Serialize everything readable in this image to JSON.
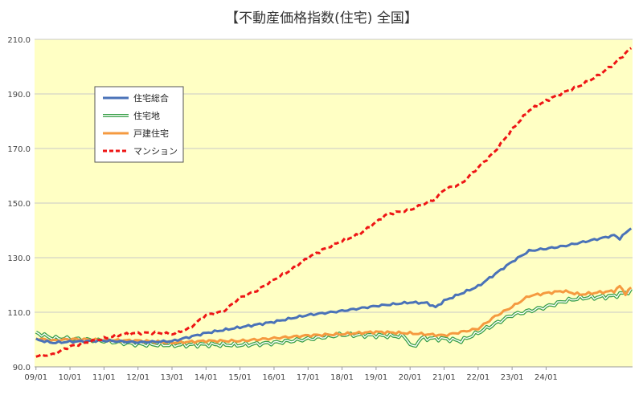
{
  "chart_data": {
    "type": "line",
    "title": "【不動産価格指数(住宅) 全国】",
    "xlabel": "",
    "ylabel": "",
    "ylim": [
      90,
      210
    ],
    "yticks": [
      "90.0",
      "110.0",
      "130.0",
      "150.0",
      "170.0",
      "190.0",
      "210.0"
    ],
    "xticks": [
      "09/01",
      "10/01",
      "11/01",
      "12/01",
      "13/01",
      "14/01",
      "15/01",
      "16/01",
      "17/01",
      "18/01",
      "19/01",
      "20/01",
      "21/01",
      "22/01",
      "23/01",
      "24/01"
    ],
    "x_start": "2009-01",
    "frequency": "monthly",
    "grid": "horizontal",
    "legend_position": "upper-left",
    "plot_background": "#ffffc4",
    "series": [
      {
        "name": "住宅総合",
        "color": "#4a72b8",
        "style": "solid",
        "anchors": [
          [
            0,
            100.0
          ],
          [
            6,
            98.8
          ],
          [
            12,
            99.2
          ],
          [
            24,
            99.6
          ],
          [
            36,
            99.0
          ],
          [
            48,
            99.4
          ],
          [
            60,
            102.4
          ],
          [
            72,
            104.5
          ],
          [
            84,
            106.5
          ],
          [
            96,
            109.0
          ],
          [
            108,
            110.5
          ],
          [
            120,
            112.3
          ],
          [
            132,
            113.6
          ],
          [
            138,
            113.4
          ],
          [
            141,
            111.8
          ],
          [
            144,
            114.2
          ],
          [
            156,
            119.5
          ],
          [
            168,
            128.5
          ],
          [
            174,
            132.5
          ],
          [
            180,
            133.3
          ],
          [
            186,
            134.2
          ],
          [
            192,
            135.5
          ],
          [
            198,
            136.8
          ],
          [
            204,
            138.2
          ],
          [
            206,
            137.0
          ],
          [
            210,
            141.0
          ]
        ]
      },
      {
        "name": "住宅地",
        "color": "#3aa04a",
        "style": "double",
        "anchors": [
          [
            0,
            102.5
          ],
          [
            6,
            100.5
          ],
          [
            12,
            100.3
          ],
          [
            24,
            99.5
          ],
          [
            36,
            98.3
          ],
          [
            48,
            98.0
          ],
          [
            60,
            98.2
          ],
          [
            72,
            98.0
          ],
          [
            84,
            98.8
          ],
          [
            96,
            100.2
          ],
          [
            108,
            101.8
          ],
          [
            120,
            101.5
          ],
          [
            130,
            101.2
          ],
          [
            133,
            97.0
          ],
          [
            136,
            100.5
          ],
          [
            144,
            100.3
          ],
          [
            150,
            99.5
          ],
          [
            156,
            102.5
          ],
          [
            168,
            109.0
          ],
          [
            180,
            112.0
          ],
          [
            186,
            114.0
          ],
          [
            192,
            115.2
          ],
          [
            198,
            115.5
          ],
          [
            204,
            116.0
          ],
          [
            210,
            117.8
          ]
        ]
      },
      {
        "name": "戸建住宅",
        "color": "#f59a40",
        "style": "solid",
        "anchors": [
          [
            0,
            100.4
          ],
          [
            6,
            99.6
          ],
          [
            12,
            100.2
          ],
          [
            24,
            99.8
          ],
          [
            36,
            99.6
          ],
          [
            48,
            98.8
          ],
          [
            60,
            99.5
          ],
          [
            72,
            99.5
          ],
          [
            84,
            100.5
          ],
          [
            96,
            101.5
          ],
          [
            108,
            102.0
          ],
          [
            120,
            102.8
          ],
          [
            132,
            102.3
          ],
          [
            144,
            101.5
          ],
          [
            156,
            104.0
          ],
          [
            162,
            108.5
          ],
          [
            168,
            112.0
          ],
          [
            174,
            116.0
          ],
          [
            180,
            117.0
          ],
          [
            186,
            117.8
          ],
          [
            192,
            116.5
          ],
          [
            198,
            117.2
          ],
          [
            204,
            117.8
          ],
          [
            206,
            119.5
          ],
          [
            208,
            116.8
          ],
          [
            210,
            119.0
          ]
        ]
      },
      {
        "name": "マンション",
        "color": "#ee1515",
        "style": "dashed",
        "anchors": [
          [
            0,
            94.0
          ],
          [
            6,
            94.5
          ],
          [
            12,
            97.5
          ],
          [
            24,
            100.4
          ],
          [
            30,
            101.8
          ],
          [
            36,
            102.4
          ],
          [
            42,
            102.5
          ],
          [
            48,
            102.0
          ],
          [
            54,
            104.0
          ],
          [
            60,
            109.0
          ],
          [
            66,
            110.2
          ],
          [
            72,
            115.3
          ],
          [
            78,
            118.0
          ],
          [
            84,
            122.0
          ],
          [
            90,
            125.5
          ],
          [
            96,
            130.0
          ],
          [
            102,
            133.3
          ],
          [
            108,
            136.2
          ],
          [
            114,
            138.5
          ],
          [
            120,
            143.0
          ],
          [
            124,
            146.0
          ],
          [
            132,
            147.5
          ],
          [
            138,
            150.2
          ],
          [
            141,
            151.5
          ],
          [
            144,
            155.0
          ],
          [
            150,
            157.0
          ],
          [
            156,
            163.0
          ],
          [
            162,
            169.0
          ],
          [
            168,
            177.0
          ],
          [
            174,
            184.0
          ],
          [
            180,
            187.5
          ],
          [
            186,
            190.5
          ],
          [
            192,
            193.0
          ],
          [
            198,
            196.5
          ],
          [
            204,
            201.0
          ],
          [
            210,
            206.8
          ]
        ]
      }
    ]
  }
}
